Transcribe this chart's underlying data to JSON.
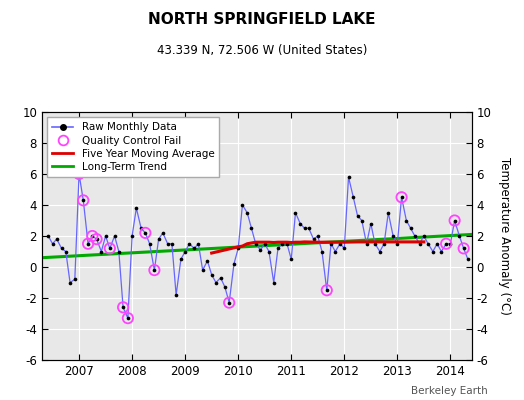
{
  "title": "NORTH SPRINGFIELD LAKE",
  "subtitle": "43.339 N, 72.506 W (United States)",
  "ylabel": "Temperature Anomaly (°C)",
  "watermark": "Berkeley Earth",
  "xlim": [
    2006.3,
    2014.4
  ],
  "ylim": [
    -6,
    10
  ],
  "yticks": [
    -6,
    -4,
    -2,
    0,
    2,
    4,
    6,
    8,
    10
  ],
  "xticks": [
    2007,
    2008,
    2009,
    2010,
    2011,
    2012,
    2013,
    2014
  ],
  "background_color": "#e8e8e8",
  "plot_bg": "#e8e8e8",
  "raw_data_t": [
    2006.42,
    2006.5,
    2006.58,
    2006.67,
    2006.75,
    2006.83,
    2006.92,
    2007.0,
    2007.08,
    2007.17,
    2007.25,
    2007.33,
    2007.42,
    2007.5,
    2007.58,
    2007.67,
    2007.75,
    2007.83,
    2007.92,
    2008.0,
    2008.08,
    2008.17,
    2008.25,
    2008.33,
    2008.42,
    2008.5,
    2008.58,
    2008.67,
    2008.75,
    2008.83,
    2008.92,
    2009.0,
    2009.08,
    2009.17,
    2009.25,
    2009.33,
    2009.42,
    2009.5,
    2009.58,
    2009.67,
    2009.75,
    2009.83,
    2009.92,
    2010.0,
    2010.08,
    2010.17,
    2010.25,
    2010.33,
    2010.42,
    2010.5,
    2010.58,
    2010.67,
    2010.75,
    2010.83,
    2010.92,
    2011.0,
    2011.08,
    2011.17,
    2011.25,
    2011.33,
    2011.42,
    2011.5,
    2011.58,
    2011.67,
    2011.75,
    2011.83,
    2011.92,
    2012.0,
    2012.08,
    2012.17,
    2012.25,
    2012.33,
    2012.42,
    2012.5,
    2012.58,
    2012.67,
    2012.75,
    2012.83,
    2012.92,
    2013.0,
    2013.08,
    2013.17,
    2013.25,
    2013.33,
    2013.42,
    2013.5,
    2013.58,
    2013.67,
    2013.75,
    2013.83,
    2013.92,
    2014.0,
    2014.08,
    2014.17,
    2014.25,
    2014.33
  ],
  "raw_data_v": [
    2.0,
    1.5,
    1.8,
    1.2,
    1.0,
    -1.0,
    -0.8,
    6.0,
    4.3,
    1.5,
    2.0,
    1.8,
    1.0,
    2.0,
    1.2,
    2.0,
    1.0,
    -2.6,
    -3.3,
    2.0,
    3.8,
    2.5,
    2.2,
    1.5,
    -0.2,
    1.8,
    2.2,
    1.5,
    1.5,
    -1.8,
    0.5,
    1.0,
    1.5,
    1.2,
    1.5,
    -0.2,
    0.4,
    -0.5,
    -1.0,
    -0.7,
    -1.3,
    -2.3,
    0.2,
    1.2,
    4.0,
    3.5,
    2.5,
    1.5,
    1.1,
    1.5,
    1.0,
    -1.0,
    1.2,
    1.5,
    1.5,
    0.5,
    3.5,
    2.8,
    2.5,
    2.5,
    1.8,
    2.0,
    1.0,
    -1.5,
    1.5,
    1.0,
    1.5,
    1.2,
    5.8,
    4.5,
    3.3,
    3.0,
    1.5,
    2.8,
    1.5,
    1.0,
    1.5,
    3.5,
    2.0,
    1.5,
    4.5,
    3.0,
    2.5,
    2.0,
    1.5,
    2.0,
    1.5,
    1.0,
    1.5,
    1.0,
    1.5,
    1.5,
    3.0,
    2.0,
    1.2,
    0.5
  ],
  "qc_fail_points_t": [
    2007.0,
    2007.08,
    2007.17,
    2007.25,
    2007.33,
    2007.58,
    2007.83,
    2007.92,
    2008.25,
    2008.42,
    2009.83,
    2011.67,
    2013.08,
    2013.92,
    2014.08,
    2014.25
  ],
  "qc_fail_points_v": [
    6.0,
    4.3,
    1.5,
    2.0,
    1.8,
    1.2,
    -2.6,
    -3.3,
    2.2,
    -0.2,
    -2.3,
    -1.5,
    4.5,
    1.5,
    3.0,
    1.2
  ],
  "five_year_ma_t": [
    2009.5,
    2009.75,
    2010.0,
    2010.08,
    2010.17,
    2010.25,
    2010.33,
    2010.42,
    2010.5,
    2010.58,
    2010.67,
    2010.75,
    2010.83,
    2010.92,
    2011.0,
    2011.08,
    2011.17,
    2011.25,
    2011.5,
    2011.75,
    2012.0,
    2012.25,
    2012.5,
    2013.0,
    2013.25,
    2013.5
  ],
  "five_year_ma_v": [
    0.9,
    1.1,
    1.3,
    1.35,
    1.5,
    1.55,
    1.6,
    1.6,
    1.6,
    1.6,
    1.58,
    1.6,
    1.6,
    1.6,
    1.58,
    1.6,
    1.6,
    1.62,
    1.6,
    1.6,
    1.6,
    1.62,
    1.62,
    1.62,
    1.62,
    1.62
  ],
  "trend_t": [
    2006.3,
    2014.4
  ],
  "trend_v": [
    0.6,
    2.1
  ],
  "line_color": "#6666ff",
  "dot_color": "#000000",
  "qc_color": "#ff44ff",
  "ma_color": "#dd0000",
  "trend_color": "#00aa00",
  "legend_items": [
    "Raw Monthly Data",
    "Quality Control Fail",
    "Five Year Moving Average",
    "Long-Term Trend"
  ]
}
